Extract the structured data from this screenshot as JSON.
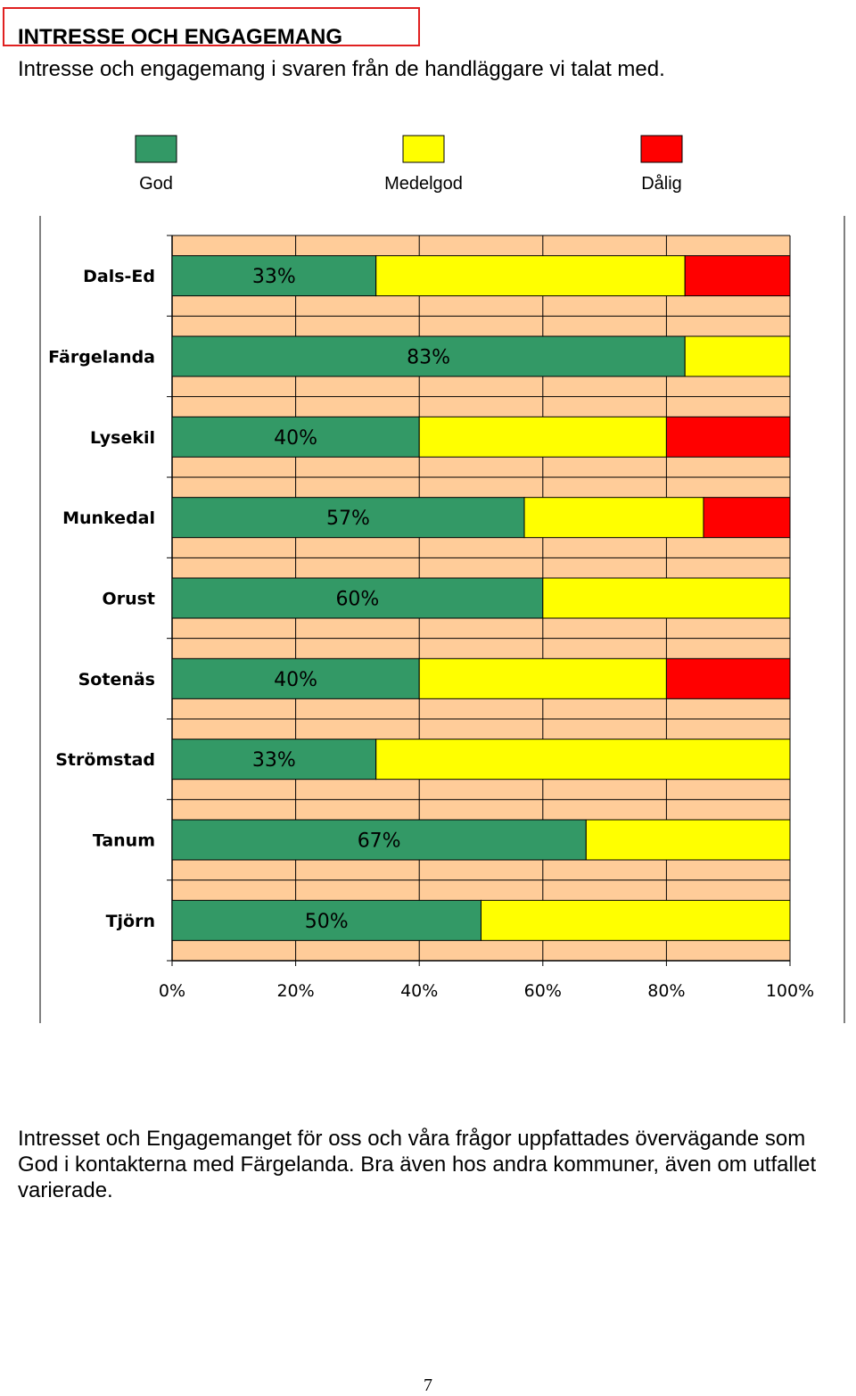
{
  "heading": {
    "title": "INTRESSE OCH ENGAGEMANG",
    "subtitle": "Intresse och engagemang i svaren från de handläggare vi talat med."
  },
  "chart_data": {
    "type": "bar",
    "orientation": "horizontal",
    "stacked": true,
    "percent_stacked": true,
    "categories": [
      "Dals-Ed",
      "Färgelanda",
      "Lysekil",
      "Munkedal",
      "Orust",
      "Sotenäs",
      "Strömstad",
      "Tanum",
      "Tjörn"
    ],
    "series": [
      {
        "name": "God",
        "color": "#339966",
        "values": [
          33,
          83,
          40,
          57,
          60,
          40,
          33,
          67,
          50
        ]
      },
      {
        "name": "Medelgod",
        "color": "#ffff00",
        "values": [
          50,
          17,
          40,
          29,
          40,
          40,
          67,
          33,
          50
        ]
      },
      {
        "name": "Dålig",
        "color": "#ff0000",
        "values": [
          17,
          0,
          20,
          14,
          0,
          20,
          0,
          0,
          0
        ]
      }
    ],
    "data_labels": [
      "33%",
      "83%",
      "40%",
      "57%",
      "60%",
      "40%",
      "33%",
      "67%",
      "50%"
    ],
    "x_ticks": [
      "0%",
      "20%",
      "40%",
      "60%",
      "80%",
      "100%"
    ],
    "xlim": [
      0,
      100
    ],
    "legend_position": "top",
    "grid": true,
    "plot_background": "#ffcc99",
    "title": "",
    "xlabel": "",
    "ylabel": ""
  },
  "body": {
    "lines": [
      "Intresset och Engagemanget för oss och våra frågor uppfattades övervägande som",
      "God i kontakterna med Färgelanda. Bra även hos andra kommuner, även om utfallet",
      "varierade."
    ]
  },
  "footer": {
    "page_number": "7"
  }
}
